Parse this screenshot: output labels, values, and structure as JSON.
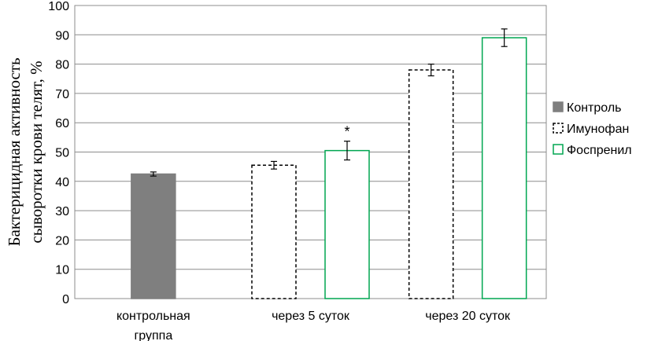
{
  "chart_data": {
    "type": "bar",
    "ylabel_lines": [
      "Бактерицидная активность",
      "сыворотки крови телят, %"
    ],
    "ylim": [
      0,
      100
    ],
    "yticks": [
      0,
      10,
      20,
      30,
      40,
      50,
      60,
      70,
      80,
      90,
      100
    ],
    "grid": true,
    "legend_position": "right",
    "groups": [
      {
        "label_lines": [
          "контрольная",
          "группа"
        ],
        "bars": [
          {
            "series": "Контроль",
            "value": 42.5,
            "error": 0.7,
            "significance": ""
          }
        ]
      },
      {
        "label_lines": [
          "через 5 суток"
        ],
        "bars": [
          {
            "series": "Имунофан",
            "value": 45.5,
            "error": 1.3,
            "significance": ""
          },
          {
            "series": "Фоспренил",
            "value": 50.5,
            "error": 3.2,
            "significance": "*"
          }
        ]
      },
      {
        "label_lines": [
          "через 20 суток"
        ],
        "bars": [
          {
            "series": "Имунофан",
            "value": 78,
            "error": 2.0,
            "significance": ""
          },
          {
            "series": "Фоспренил",
            "value": 89,
            "error": 3.0,
            "significance": ""
          }
        ]
      }
    ],
    "series": [
      {
        "name": "Контроль",
        "fill": "#7f7f7f",
        "stroke": "#7f7f7f",
        "dashed": false
      },
      {
        "name": "Имунофан",
        "fill": "#ffffff",
        "stroke": "#000000",
        "dashed": true
      },
      {
        "name": "Фоспренил",
        "fill": "#ffffff",
        "stroke": "#00a651",
        "dashed": false
      }
    ]
  }
}
